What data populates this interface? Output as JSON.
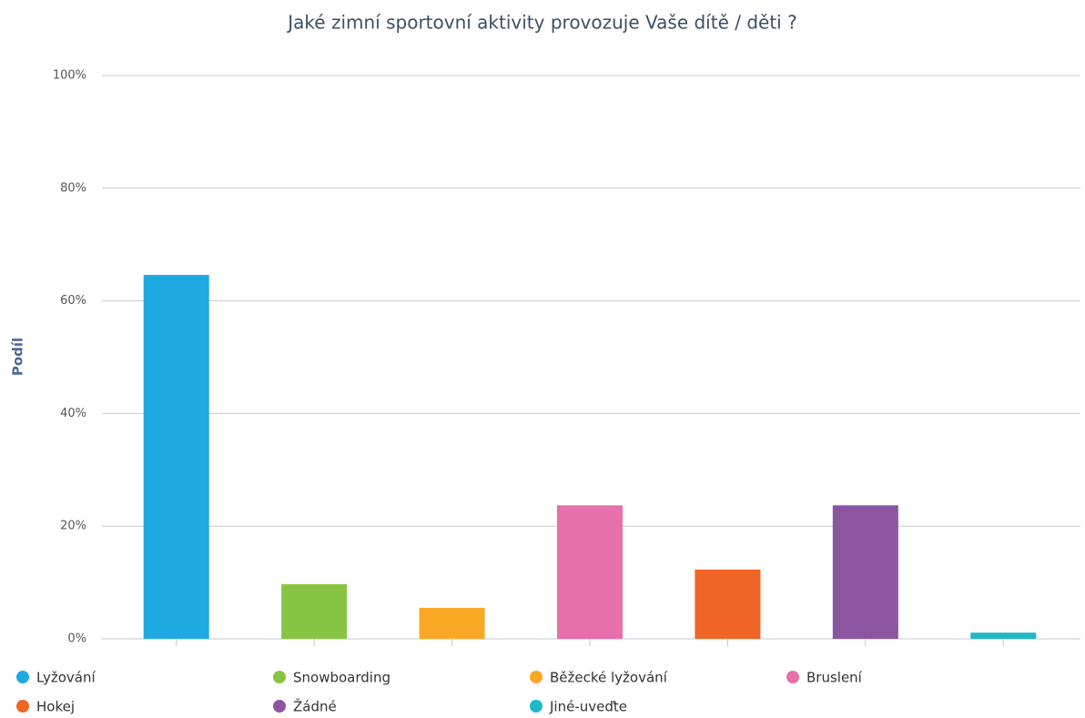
{
  "chart_data": {
    "type": "bar",
    "title": "Jaké zimní sportovní aktivity provozuje Vaše dítě / děti ?",
    "y_label": "Podíl",
    "categories": [
      null,
      null,
      null,
      null,
      null,
      null,
      null
    ],
    "series": [
      {
        "name": "Lyžování",
        "color": "#1ea9e1",
        "values": [
          64.6,
          null,
          null,
          null,
          null,
          null,
          null
        ]
      },
      {
        "name": "Snowboarding",
        "color": "#88c443",
        "values": [
          null,
          9.7,
          null,
          null,
          null,
          null,
          null
        ]
      },
      {
        "name": "Běžecké lyžování",
        "color": "#f9a825",
        "values": [
          null,
          null,
          5.5,
          null,
          null,
          null,
          null
        ]
      },
      {
        "name": "Bruslení",
        "color": "#e76fab",
        "values": [
          null,
          null,
          null,
          23.7,
          null,
          null,
          null
        ]
      },
      {
        "name": "Hokej",
        "color": "#ef6526",
        "values": [
          null,
          null,
          null,
          null,
          12.3,
          null,
          null
        ]
      },
      {
        "name": "Žádné",
        "color": "#8d55a1",
        "values": [
          null,
          null,
          null,
          null,
          null,
          23.7,
          null
        ]
      },
      {
        "name": "Jiné-uveďte",
        "color": "#1fb8c8",
        "values": [
          null,
          null,
          null,
          null,
          null,
          null,
          1.1
        ]
      }
    ],
    "ylim": [
      0,
      100
    ],
    "yticks": [
      {
        "value": 0,
        "label": "0%"
      },
      {
        "value": 20,
        "label": "20%"
      },
      {
        "value": 40,
        "label": "40%"
      },
      {
        "value": 60,
        "label": "60%"
      },
      {
        "value": 80,
        "label": "80%"
      },
      {
        "value": 100,
        "label": "100%"
      }
    ],
    "grid": true
  }
}
